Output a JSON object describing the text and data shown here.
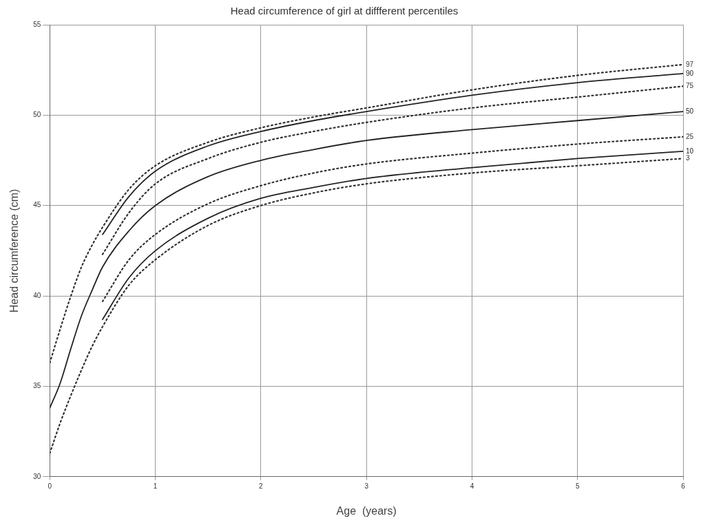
{
  "chart_data": {
    "type": "line",
    "title": "Head circumference of girl at diffferent percentiles",
    "xlabel": "Age  (years)",
    "ylabel": "Head circumference (cm)",
    "xlim": [
      0,
      6
    ],
    "xticks": [
      0,
      1,
      2,
      3,
      4,
      5,
      6
    ],
    "ylim": [
      30,
      55
    ],
    "yticks": [
      30,
      35,
      40,
      45,
      50,
      55
    ],
    "grid": true,
    "legend": false,
    "marker": "none",
    "series": [
      {
        "name": "97",
        "color": "#333333",
        "line_style": "dotted",
        "x": [
          0,
          0.1,
          0.2,
          0.3,
          0.4,
          0.5,
          0.75,
          1,
          1.5,
          2,
          2.5,
          3,
          4,
          5,
          6
        ],
        "values": [
          36.3,
          38.2,
          40.0,
          41.6,
          42.8,
          43.8,
          45.9,
          47.2,
          48.5,
          49.3,
          49.9,
          50.4,
          51.4,
          52.2,
          52.8
        ]
      },
      {
        "name": "90",
        "color": "#222222",
        "line_style": "solid",
        "x": [
          0.5,
          0.75,
          1,
          1.5,
          2,
          2.5,
          3,
          4,
          5,
          6
        ],
        "values": [
          43.4,
          45.5,
          46.9,
          48.3,
          49.1,
          49.7,
          50.2,
          51.1,
          51.8,
          52.3
        ]
      },
      {
        "name": "75",
        "color": "#333333",
        "line_style": "dotted",
        "x": [
          0.5,
          0.75,
          1,
          1.5,
          2,
          2.5,
          3,
          4,
          5,
          6
        ],
        "values": [
          42.3,
          44.6,
          46.2,
          47.6,
          48.5,
          49.1,
          49.6,
          50.4,
          51.0,
          51.6
        ]
      },
      {
        "name": "50",
        "color": "#222222",
        "line_style": "solid",
        "x": [
          0,
          0.1,
          0.2,
          0.3,
          0.4,
          0.5,
          0.75,
          1,
          1.5,
          2,
          2.5,
          3,
          4,
          5,
          6
        ],
        "values": [
          33.8,
          35.2,
          37.1,
          38.9,
          40.3,
          41.6,
          43.6,
          45.0,
          46.6,
          47.5,
          48.1,
          48.6,
          49.2,
          49.7,
          50.2
        ]
      },
      {
        "name": "25",
        "color": "#333333",
        "line_style": "dotted",
        "x": [
          0.5,
          0.75,
          1,
          1.5,
          2,
          2.5,
          3,
          4,
          5,
          6
        ],
        "values": [
          39.7,
          42.0,
          43.4,
          45.1,
          46.1,
          46.8,
          47.3,
          47.9,
          48.4,
          48.8
        ]
      },
      {
        "name": "10",
        "color": "#222222",
        "line_style": "solid",
        "x": [
          0.5,
          0.75,
          1,
          1.5,
          2,
          2.5,
          3,
          4,
          5,
          6
        ],
        "values": [
          38.7,
          41.0,
          42.5,
          44.3,
          45.4,
          46.0,
          46.5,
          47.1,
          47.6,
          48.0
        ]
      },
      {
        "name": "3",
        "color": "#333333",
        "line_style": "dotted",
        "x": [
          0,
          0.1,
          0.2,
          0.3,
          0.4,
          0.5,
          0.75,
          1,
          1.5,
          2,
          2.5,
          3,
          4,
          5,
          6
        ],
        "values": [
          31.3,
          33.0,
          34.5,
          35.9,
          37.2,
          38.3,
          40.6,
          42.0,
          43.9,
          45.0,
          45.7,
          46.2,
          46.8,
          47.2,
          47.6
        ]
      }
    ]
  }
}
